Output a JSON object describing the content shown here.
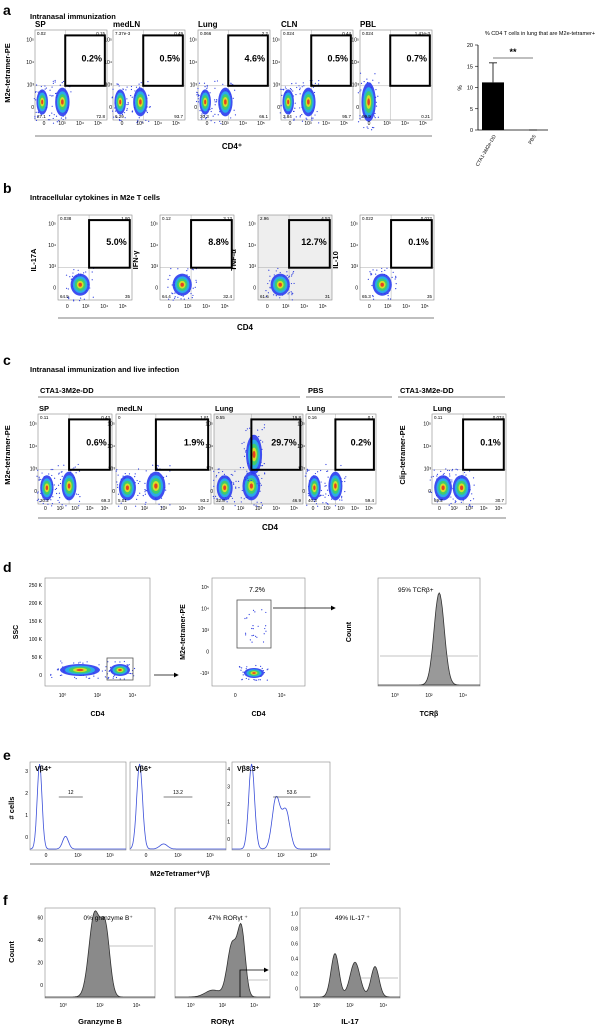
{
  "a": {
    "letter": "a",
    "title": "Intranasal immunization",
    "y_label": "M2e-tetramer-PE",
    "x_label": "CD4⁺",
    "x_ticks": [
      "0",
      "10³",
      "10⁴",
      "10⁵"
    ],
    "y_ticks": [
      "0",
      "10³",
      "10⁴",
      "10⁵"
    ],
    "plots": [
      {
        "name": "SP",
        "gate": "0.2%",
        "corners": [
          "0.02",
          "0.15",
          "27.1",
          "72.8"
        ]
      },
      {
        "name": "medLN",
        "gate": "0.5%",
        "corners": [
          "7.37e-3",
          "0.49",
          "6.29",
          "93.7"
        ]
      },
      {
        "name": "Lung",
        "gate": "4.6%",
        "corners": [
          "0.066",
          "2.2",
          "30.3",
          "66.1"
        ]
      },
      {
        "name": "CLN",
        "gate": "0.5%",
        "corners": [
          "0.024",
          "0.44",
          "3.84",
          "95.7"
        ]
      },
      {
        "name": "PBL",
        "gate": "0.7%",
        "corners": [
          "0.024",
          "1.41e-3",
          "99.9",
          "0.21"
        ]
      }
    ],
    "chart": {
      "type": "bar",
      "title": "% CD4 T cells in lung that are M2e-tetramer+",
      "y_label": "%",
      "categories": [
        "CTA1-3M2e-DD",
        "PBS"
      ],
      "values": [
        11.2,
        0
      ],
      "errors": [
        4.6,
        0
      ],
      "color": "#000000",
      "ylim": [
        0,
        20
      ],
      "yticks": [
        0,
        5,
        10,
        15,
        20
      ],
      "annotation": "**"
    }
  },
  "b": {
    "letter": "b",
    "title": "Intracellular cytokines in M2e T cells",
    "x_label": "CD4",
    "x_ticks": [
      "0",
      "10³",
      "10⁴",
      "10⁵"
    ],
    "y_ticks": [
      "0",
      "10³",
      "10⁴",
      "10⁵"
    ],
    "plots": [
      {
        "y_label": "IL-17A",
        "gate": "5.0%",
        "corners": [
          "0.038",
          "1.80",
          "64.5",
          "35"
        ]
      },
      {
        "y_label": "IFN-γ",
        "gate": "8.8%",
        "corners": [
          "0.12",
          "3.13",
          "64.4",
          "32.4"
        ]
      },
      {
        "y_label": "TNF-α",
        "gate": "12.7%",
        "corners": [
          "2.96",
          "4.53",
          "61.5",
          "31"
        ]
      },
      {
        "y_label": "IL-10",
        "gate": "0.1%",
        "corners": [
          "0.022",
          "0.022",
          "65.3",
          "35"
        ]
      }
    ]
  },
  "c": {
    "letter": "c",
    "title": "Intranasal immunization and live infection",
    "x_label": "CD4",
    "groups": [
      "CTA1-3M2e-DD",
      "PBS",
      "CTA1-3M2e-DD"
    ],
    "y_labels": [
      "M2e-tetramer-PE",
      "Clip-tetramer-PE"
    ],
    "x_ticks": [
      "0",
      "10²",
      "10³",
      "10⁴",
      "10⁵"
    ],
    "y_ticks": [
      "0",
      "10³",
      "10⁴",
      "10⁵"
    ],
    "plots": [
      {
        "name": "SP",
        "gate": "0.6%",
        "corners": [
          "0.11",
          "0.43",
          "30.2",
          "69.3"
        ]
      },
      {
        "name": "medLN",
        "gate": "1.9%",
        "corners": [
          "0",
          "1.81",
          "5.01",
          "93.2"
        ]
      },
      {
        "name": "Lung",
        "gate": "29.7%",
        "corners": [
          "0.55",
          "19.8",
          "32.8",
          "46.9"
        ]
      },
      {
        "name": "Lung",
        "gate": "0.2%",
        "corners": [
          "0.16",
          "0.1",
          "40.3",
          "59.4"
        ]
      },
      {
        "name": "Lung",
        "gate": "0.1%",
        "corners": [
          "0.11",
          "0.074",
          "69.2",
          "30.7"
        ]
      }
    ]
  },
  "d": {
    "letter": "d",
    "plots": [
      {
        "y_label": "SSC",
        "x_label": "CD4",
        "y_ticks": [
          "0",
          "50 K",
          "100 K",
          "150 K",
          "200 K",
          "250 K"
        ],
        "x_ticks": [
          "10⁰",
          "10²",
          "10⁴"
        ]
      },
      {
        "y_label": "M2e-tetramer-PE",
        "x_label": "CD4",
        "gate": "7.2%",
        "y_ticks": [
          "-10³",
          "0",
          "10³",
          "10⁴",
          "10⁵"
        ],
        "x_ticks": [
          "0",
          "10⁴"
        ]
      },
      {
        "y_label": "Count",
        "x_label": "TCRβ",
        "gate": "95% TCRβ+",
        "y_ticks": [],
        "x_ticks": [
          "10⁰",
          "10²",
          "10⁴"
        ]
      }
    ]
  },
  "e": {
    "letter": "e",
    "y_label": "# cells",
    "x_label": "M2eTetramer⁺Vβ",
    "plots": [
      {
        "name": "Vβ4⁺",
        "gate": "12",
        "y_ticks": [
          "0",
          "1",
          "2",
          "3"
        ],
        "x_ticks": [
          "0",
          "10²",
          "10³"
        ]
      },
      {
        "name": "Vβ6⁺",
        "gate": "13.2",
        "y_ticks": [],
        "x_ticks": [
          "0",
          "10²",
          "10³"
        ]
      },
      {
        "name": "Vβ8.3⁺",
        "gate": "53.6",
        "y_ticks": [
          "0",
          "1",
          "2",
          "3",
          "4"
        ],
        "x_ticks": [
          "0",
          "10²",
          "10³"
        ]
      }
    ]
  },
  "f": {
    "letter": "f",
    "y_label": "Count",
    "plots": [
      {
        "name": "0% granzyme B⁺",
        "x_label": "Granzyme B",
        "y_ticks": [
          "0",
          "20",
          "40",
          "60"
        ],
        "x_ticks": [
          "10⁰",
          "10²",
          "10⁴"
        ]
      },
      {
        "name": "47% RORγt ⁺",
        "x_label": "RORγt",
        "y_ticks": [],
        "x_ticks": [
          "10⁰",
          "10²",
          "10⁴"
        ]
      },
      {
        "name": "49% IL-17 ⁺",
        "x_label": "IL-17",
        "y_ticks": [
          "0",
          "0.2",
          "0.4",
          "0.6",
          "0.8",
          "1.0"
        ],
        "x_ticks": [
          "10⁰",
          "10²",
          "10⁴"
        ]
      }
    ]
  }
}
